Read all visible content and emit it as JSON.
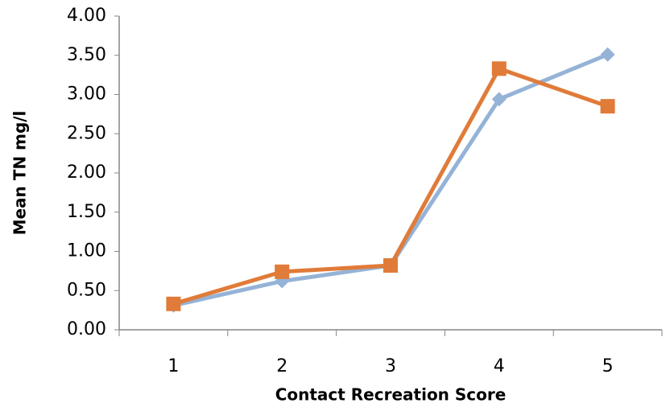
{
  "chart_data": {
    "type": "line",
    "x_label": "Contact Recreation Score",
    "y_label": "Mean TN mg/l",
    "categories": [
      "1",
      "2",
      "3",
      "4",
      "5"
    ],
    "series": [
      {
        "color": "#95b3d7",
        "marker": "diamond",
        "values": [
          0.31,
          0.62,
          0.82,
          2.94,
          3.51
        ]
      },
      {
        "color": "#e07b39",
        "marker": "square",
        "values": [
          0.33,
          0.74,
          0.82,
          3.33,
          2.85
        ]
      }
    ],
    "ylim": [
      0,
      4
    ],
    "yticks": [
      {
        "value": 0,
        "label": "0.00"
      },
      {
        "value": 0.5,
        "label": "0.50"
      },
      {
        "value": 1,
        "label": "1.00"
      },
      {
        "value": 1.5,
        "label": "1.50"
      },
      {
        "value": 2,
        "label": "2.00"
      },
      {
        "value": 2.5,
        "label": "2.50"
      },
      {
        "value": 3,
        "label": "3.00"
      },
      {
        "value": 3.5,
        "label": "3.50"
      },
      {
        "value": 4,
        "label": "4.00"
      }
    ],
    "grid": false
  }
}
